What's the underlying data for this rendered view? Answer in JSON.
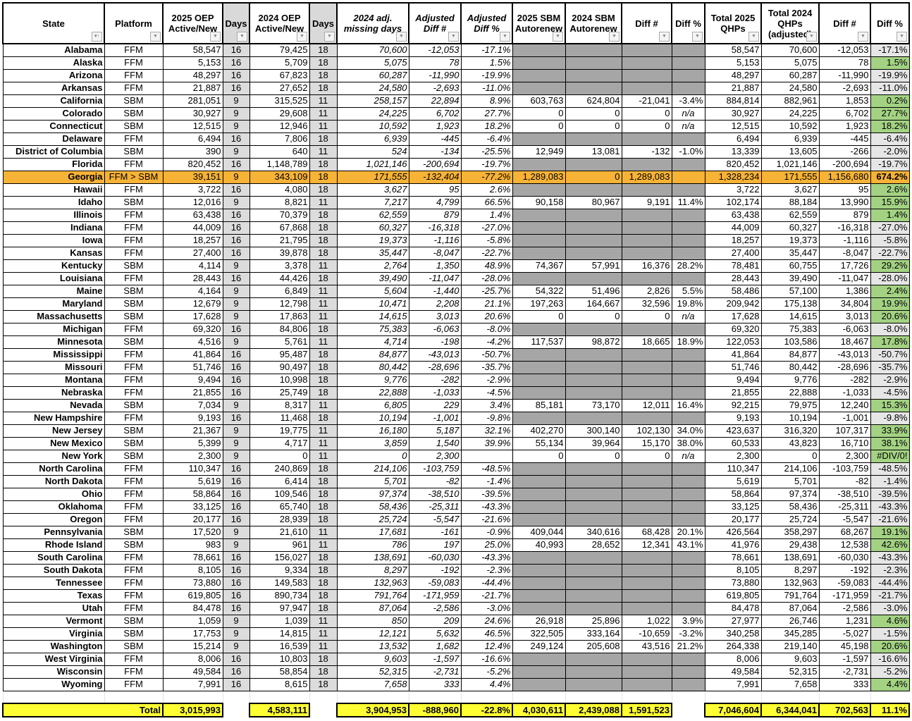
{
  "headers": [
    "State",
    "Platform",
    "2025 OEP Active/New",
    "Days",
    "2024 OEP Active/New",
    "Days",
    "2024 adj. missing days",
    "Adjusted Diff #",
    "Adjusted Diff %",
    "2025 SBM Autorenew",
    "2024 SBM Autorenew",
    "Diff #",
    "Diff %",
    "Total 2025 QHPs",
    "Total 2024 QHPs (adjusted)",
    "Diff #",
    "Diff %"
  ],
  "header_italic": [
    false,
    false,
    false,
    false,
    false,
    false,
    true,
    true,
    true,
    false,
    false,
    false,
    false,
    false,
    false,
    false,
    false
  ],
  "highlight_state": "Georgia",
  "colors": {
    "highlight": "#f7b336",
    "positive": "#a3d283",
    "negative": "#e6e6e6",
    "na_block": "#a6a6a6",
    "total": "#ffff33",
    "days": "#dcdcdc"
  },
  "rows": [
    [
      "Alabama",
      "FFM",
      "58,547",
      "16",
      "79,425",
      "18",
      "70,600",
      "-12,053",
      "-17.1%",
      null,
      null,
      null,
      null,
      "58,547",
      "70,600",
      "-12,053",
      "-17.1%"
    ],
    [
      "Alaska",
      "FFM",
      "5,153",
      "16",
      "5,709",
      "18",
      "5,075",
      "78",
      "1.5%",
      null,
      null,
      null,
      null,
      "5,153",
      "5,075",
      "78",
      "1.5%"
    ],
    [
      "Arizona",
      "FFM",
      "48,297",
      "16",
      "67,823",
      "18",
      "60,287",
      "-11,990",
      "-19.9%",
      null,
      null,
      null,
      null,
      "48,297",
      "60,287",
      "-11,990",
      "-19.9%"
    ],
    [
      "Arkansas",
      "FFM",
      "21,887",
      "16",
      "27,652",
      "18",
      "24,580",
      "-2,693",
      "-11.0%",
      null,
      null,
      null,
      null,
      "21,887",
      "24,580",
      "-2,693",
      "-11.0%"
    ],
    [
      "California",
      "SBM",
      "281,051",
      "9",
      "315,525",
      "11",
      "258,157",
      "22,894",
      "8.9%",
      "603,763",
      "624,804",
      "-21,041",
      "-3.4%",
      "884,814",
      "882,961",
      "1,853",
      "0.2%"
    ],
    [
      "Colorado",
      "SBM",
      "30,927",
      "9",
      "29,608",
      "11",
      "24,225",
      "6,702",
      "27.7%",
      "0",
      "0",
      "0",
      "n/a",
      "30,927",
      "24,225",
      "6,702",
      "27.7%"
    ],
    [
      "Connecticut",
      "SBM",
      "12,515",
      "9",
      "12,946",
      "11",
      "10,592",
      "1,923",
      "18.2%",
      "0",
      "0",
      "0",
      "n/a",
      "12,515",
      "10,592",
      "1,923",
      "18.2%"
    ],
    [
      "Delaware",
      "FFM",
      "6,494",
      "16",
      "7,806",
      "18",
      "6,939",
      "-445",
      "-6.4%",
      null,
      null,
      null,
      null,
      "6,494",
      "6,939",
      "-445",
      "-6.4%"
    ],
    [
      "District of Columbia",
      "SBM",
      "390",
      "9",
      "640",
      "11",
      "524",
      "-134",
      "-25.5%",
      "12,949",
      "13,081",
      "-132",
      "-1.0%",
      "13,339",
      "13,605",
      "-266",
      "-2.0%"
    ],
    [
      "Florida",
      "FFM",
      "820,452",
      "16",
      "1,148,789",
      "18",
      "1,021,146",
      "-200,694",
      "-19.7%",
      null,
      null,
      null,
      null,
      "820,452",
      "1,021,146",
      "-200,694",
      "-19.7%"
    ],
    [
      "Georgia",
      "FFM > SBM",
      "39,151",
      "9",
      "343,109",
      "18",
      "171,555",
      "-132,404",
      "-77.2%",
      "1,289,083",
      "0",
      "1,289,083",
      "",
      "1,328,234",
      "171,555",
      "1,156,680",
      "674.2%"
    ],
    [
      "Hawaii",
      "FFM",
      "3,722",
      "16",
      "4,080",
      "18",
      "3,627",
      "95",
      "2.6%",
      null,
      null,
      null,
      null,
      "3,722",
      "3,627",
      "95",
      "2.6%"
    ],
    [
      "Idaho",
      "SBM",
      "12,016",
      "9",
      "8,821",
      "11",
      "7,217",
      "4,799",
      "66.5%",
      "90,158",
      "80,967",
      "9,191",
      "11.4%",
      "102,174",
      "88,184",
      "13,990",
      "15.9%"
    ],
    [
      "Illinois",
      "FFM",
      "63,438",
      "16",
      "70,379",
      "18",
      "62,559",
      "879",
      "1.4%",
      null,
      null,
      null,
      null,
      "63,438",
      "62,559",
      "879",
      "1.4%"
    ],
    [
      "Indiana",
      "FFM",
      "44,009",
      "16",
      "67,868",
      "18",
      "60,327",
      "-16,318",
      "-27.0%",
      null,
      null,
      null,
      null,
      "44,009",
      "60,327",
      "-16,318",
      "-27.0%"
    ],
    [
      "Iowa",
      "FFM",
      "18,257",
      "16",
      "21,795",
      "18",
      "19,373",
      "-1,116",
      "-5.8%",
      null,
      null,
      null,
      null,
      "18,257",
      "19,373",
      "-1,116",
      "-5.8%"
    ],
    [
      "Kansas",
      "FFM",
      "27,400",
      "16",
      "39,878",
      "18",
      "35,447",
      "-8,047",
      "-22.7%",
      null,
      null,
      null,
      null,
      "27,400",
      "35,447",
      "-8,047",
      "-22.7%"
    ],
    [
      "Kentucky",
      "SBM",
      "4,114",
      "9",
      "3,378",
      "11",
      "2,764",
      "1,350",
      "48.9%",
      "74,367",
      "57,991",
      "16,376",
      "28.2%",
      "78,481",
      "60,755",
      "17,726",
      "29.2%"
    ],
    [
      "Louisiana",
      "FFM",
      "28,443",
      "16",
      "44,426",
      "18",
      "39,490",
      "-11,047",
      "-28.0%",
      null,
      null,
      null,
      null,
      "28,443",
      "39,490",
      "-11,047",
      "-28.0%"
    ],
    [
      "Maine",
      "SBM",
      "4,164",
      "9",
      "6,849",
      "11",
      "5,604",
      "-1,440",
      "-25.7%",
      "54,322",
      "51,496",
      "2,826",
      "5.5%",
      "58,486",
      "57,100",
      "1,386",
      "2.4%"
    ],
    [
      "Maryland",
      "SBM",
      "12,679",
      "9",
      "12,798",
      "11",
      "10,471",
      "2,208",
      "21.1%",
      "197,263",
      "164,667",
      "32,596",
      "19.8%",
      "209,942",
      "175,138",
      "34,804",
      "19.9%"
    ],
    [
      "Massachusetts",
      "SBM",
      "17,628",
      "9",
      "17,863",
      "11",
      "14,615",
      "3,013",
      "20.6%",
      "0",
      "0",
      "0",
      "n/a",
      "17,628",
      "14,615",
      "3,013",
      "20.6%"
    ],
    [
      "Michigan",
      "FFM",
      "69,320",
      "16",
      "84,806",
      "18",
      "75,383",
      "-6,063",
      "-8.0%",
      null,
      null,
      null,
      null,
      "69,320",
      "75,383",
      "-6,063",
      "-8.0%"
    ],
    [
      "Minnesota",
      "SBM",
      "4,516",
      "9",
      "5,761",
      "11",
      "4,714",
      "-198",
      "-4.2%",
      "117,537",
      "98,872",
      "18,665",
      "18.9%",
      "122,053",
      "103,586",
      "18,467",
      "17.8%"
    ],
    [
      "Mississippi",
      "FFM",
      "41,864",
      "16",
      "95,487",
      "18",
      "84,877",
      "-43,013",
      "-50.7%",
      null,
      null,
      null,
      null,
      "41,864",
      "84,877",
      "-43,013",
      "-50.7%"
    ],
    [
      "Missouri",
      "FFM",
      "51,746",
      "16",
      "90,497",
      "18",
      "80,442",
      "-28,696",
      "-35.7%",
      null,
      null,
      null,
      null,
      "51,746",
      "80,442",
      "-28,696",
      "-35.7%"
    ],
    [
      "Montana",
      "FFM",
      "9,494",
      "16",
      "10,998",
      "18",
      "9,776",
      "-282",
      "-2.9%",
      null,
      null,
      null,
      null,
      "9,494",
      "9,776",
      "-282",
      "-2.9%"
    ],
    [
      "Nebraska",
      "FFM",
      "21,855",
      "16",
      "25,749",
      "18",
      "22,888",
      "-1,033",
      "-4.5%",
      null,
      null,
      null,
      null,
      "21,855",
      "22,888",
      "-1,033",
      "-4.5%"
    ],
    [
      "Nevada",
      "SBM",
      "7,034",
      "9",
      "8,317",
      "11",
      "6,805",
      "229",
      "3.4%",
      "85,181",
      "73,170",
      "12,011",
      "16.4%",
      "92,215",
      "79,975",
      "12,240",
      "15.3%"
    ],
    [
      "New Hampshire",
      "FFM",
      "9,193",
      "16",
      "11,468",
      "18",
      "10,194",
      "-1,001",
      "-9.8%",
      null,
      null,
      null,
      null,
      "9,193",
      "10,194",
      "-1,001",
      "-9.8%"
    ],
    [
      "New Jersey",
      "SBM",
      "21,367",
      "9",
      "19,775",
      "11",
      "16,180",
      "5,187",
      "32.1%",
      "402,270",
      "300,140",
      "102,130",
      "34.0%",
      "423,637",
      "316,320",
      "107,317",
      "33.9%"
    ],
    [
      "New Mexico",
      "SBM",
      "5,399",
      "9",
      "4,717",
      "11",
      "3,859",
      "1,540",
      "39.9%",
      "55,134",
      "39,964",
      "15,170",
      "38.0%",
      "60,533",
      "43,823",
      "16,710",
      "38.1%"
    ],
    [
      "New York",
      "SBM",
      "2,300",
      "9",
      "0",
      "11",
      "0",
      "2,300",
      "",
      "0",
      "0",
      "0",
      "n/a",
      "2,300",
      "0",
      "2,300",
      "#DIV/0!"
    ],
    [
      "North Carolina",
      "FFM",
      "110,347",
      "16",
      "240,869",
      "18",
      "214,106",
      "-103,759",
      "-48.5%",
      null,
      null,
      null,
      null,
      "110,347",
      "214,106",
      "-103,759",
      "-48.5%"
    ],
    [
      "North Dakota",
      "FFM",
      "5,619",
      "16",
      "6,414",
      "18",
      "5,701",
      "-82",
      "-1.4%",
      null,
      null,
      null,
      null,
      "5,619",
      "5,701",
      "-82",
      "-1.4%"
    ],
    [
      "Ohio",
      "FFM",
      "58,864",
      "16",
      "109,546",
      "18",
      "97,374",
      "-38,510",
      "-39.5%",
      null,
      null,
      null,
      null,
      "58,864",
      "97,374",
      "-38,510",
      "-39.5%"
    ],
    [
      "Oklahoma",
      "FFM",
      "33,125",
      "16",
      "65,740",
      "18",
      "58,436",
      "-25,311",
      "-43.3%",
      null,
      null,
      null,
      null,
      "33,125",
      "58,436",
      "-25,311",
      "-43.3%"
    ],
    [
      "Oregon",
      "FFM",
      "20,177",
      "16",
      "28,939",
      "18",
      "25,724",
      "-5,547",
      "-21.6%",
      null,
      null,
      null,
      null,
      "20,177",
      "25,724",
      "-5,547",
      "-21.6%"
    ],
    [
      "Pennsylvania",
      "SBM",
      "17,520",
      "9",
      "21,610",
      "11",
      "17,681",
      "-161",
      "-0.9%",
      "409,044",
      "340,616",
      "68,428",
      "20.1%",
      "426,564",
      "358,297",
      "68,267",
      "19.1%"
    ],
    [
      "Rhode Island",
      "SBM",
      "983",
      "9",
      "961",
      "11",
      "786",
      "197",
      "25.0%",
      "40,993",
      "28,652",
      "12,341",
      "43.1%",
      "41,976",
      "29,438",
      "12,538",
      "42.6%"
    ],
    [
      "South Carolina",
      "FFM",
      "78,661",
      "16",
      "156,027",
      "18",
      "138,691",
      "-60,030",
      "-43.3%",
      null,
      null,
      null,
      null,
      "78,661",
      "138,691",
      "-60,030",
      "-43.3%"
    ],
    [
      "South Dakota",
      "FFM",
      "8,105",
      "16",
      "9,334",
      "18",
      "8,297",
      "-192",
      "-2.3%",
      null,
      null,
      null,
      null,
      "8,105",
      "8,297",
      "-192",
      "-2.3%"
    ],
    [
      "Tennessee",
      "FFM",
      "73,880",
      "16",
      "149,583",
      "18",
      "132,963",
      "-59,083",
      "-44.4%",
      null,
      null,
      null,
      null,
      "73,880",
      "132,963",
      "-59,083",
      "-44.4%"
    ],
    [
      "Texas",
      "FFM",
      "619,805",
      "16",
      "890,734",
      "18",
      "791,764",
      "-171,959",
      "-21.7%",
      null,
      null,
      null,
      null,
      "619,805",
      "791,764",
      "-171,959",
      "-21.7%"
    ],
    [
      "Utah",
      "FFM",
      "84,478",
      "16",
      "97,947",
      "18",
      "87,064",
      "-2,586",
      "-3.0%",
      null,
      null,
      null,
      null,
      "84,478",
      "87,064",
      "-2,586",
      "-3.0%"
    ],
    [
      "Vermont",
      "SBM",
      "1,059",
      "9",
      "1,039",
      "11",
      "850",
      "209",
      "24.6%",
      "26,918",
      "25,896",
      "1,022",
      "3.9%",
      "27,977",
      "26,746",
      "1,231",
      "4.6%"
    ],
    [
      "Virginia",
      "SBM",
      "17,753",
      "9",
      "14,815",
      "11",
      "12,121",
      "5,632",
      "46.5%",
      "322,505",
      "333,164",
      "-10,659",
      "-3.2%",
      "340,258",
      "345,285",
      "-5,027",
      "-1.5%"
    ],
    [
      "Washington",
      "SBM",
      "15,214",
      "9",
      "16,539",
      "11",
      "13,532",
      "1,682",
      "12.4%",
      "249,124",
      "205,608",
      "43,516",
      "21.2%",
      "264,338",
      "219,140",
      "45,198",
      "20.6%"
    ],
    [
      "West Virginia",
      "FFM",
      "8,006",
      "16",
      "10,803",
      "18",
      "9,603",
      "-1,597",
      "-16.6%",
      null,
      null,
      null,
      null,
      "8,006",
      "9,603",
      "-1,597",
      "-16.6%"
    ],
    [
      "Wisconsin",
      "FFM",
      "49,584",
      "16",
      "58,854",
      "18",
      "52,315",
      "-2,731",
      "-5.2%",
      null,
      null,
      null,
      null,
      "49,584",
      "52,315",
      "-2,731",
      "-5.2%"
    ],
    [
      "Wyoming",
      "FFM",
      "7,991",
      "16",
      "8,615",
      "18",
      "7,658",
      "333",
      "4.4%",
      null,
      null,
      null,
      null,
      "7,991",
      "7,658",
      "333",
      "4.4%"
    ]
  ],
  "total": {
    "label": "Total",
    "values": [
      null,
      null,
      "3,015,993",
      null,
      "4,583,111",
      null,
      "3,904,953",
      "-888,960",
      "-22.8%",
      "4,030,611",
      "2,439,088",
      "1,591,523",
      null,
      "7,046,604",
      "6,344,041",
      "702,563",
      "11.1%"
    ]
  }
}
